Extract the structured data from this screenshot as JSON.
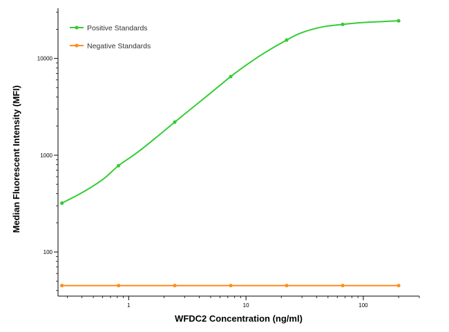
{
  "chart_data": {
    "type": "line",
    "xlabel": "WFDC2 Concentration (ng/ml)",
    "ylabel": "Median Fluorescent Intensity (MFI)",
    "xscale": "log",
    "yscale": "log",
    "xlim": [
      0.25,
      300
    ],
    "ylim": [
      35,
      33000
    ],
    "x_ticks": [
      1,
      10,
      100
    ],
    "x_tick_labels": [
      "1",
      "10",
      "100"
    ],
    "y_ticks": [
      100,
      1000,
      10000
    ],
    "y_tick_labels": [
      "100",
      "1000",
      "10000"
    ],
    "legend_position": "top-left",
    "grid": false,
    "series": [
      {
        "name": "Positive Standards",
        "color": "#33cc33",
        "x": [
          0.27,
          0.82,
          2.47,
          7.41,
          22.2,
          66.7,
          200
        ],
        "y": [
          320,
          780,
          2200,
          6500,
          15500,
          22500,
          24500
        ],
        "curve_x": [
          0.27,
          0.4,
          0.6,
          0.82,
          1.2,
          1.8,
          2.47,
          3.5,
          5,
          7.41,
          10,
          14,
          22.2,
          30,
          45,
          66.7,
          100,
          150,
          200
        ],
        "curve_y": [
          320,
          410,
          560,
          780,
          1080,
          1600,
          2200,
          3100,
          4400,
          6500,
          8500,
          11200,
          15500,
          18500,
          21200,
          22500,
          23500,
          24100,
          24500
        ]
      },
      {
        "name": "Negative Standards",
        "color": "#ff8c1a",
        "x": [
          0.27,
          0.82,
          2.47,
          7.41,
          22.2,
          66.7,
          200
        ],
        "y": [
          45,
          45,
          45,
          45,
          45,
          45,
          45
        ],
        "curve_x": [
          0.27,
          200
        ],
        "curve_y": [
          45,
          45
        ]
      }
    ]
  }
}
